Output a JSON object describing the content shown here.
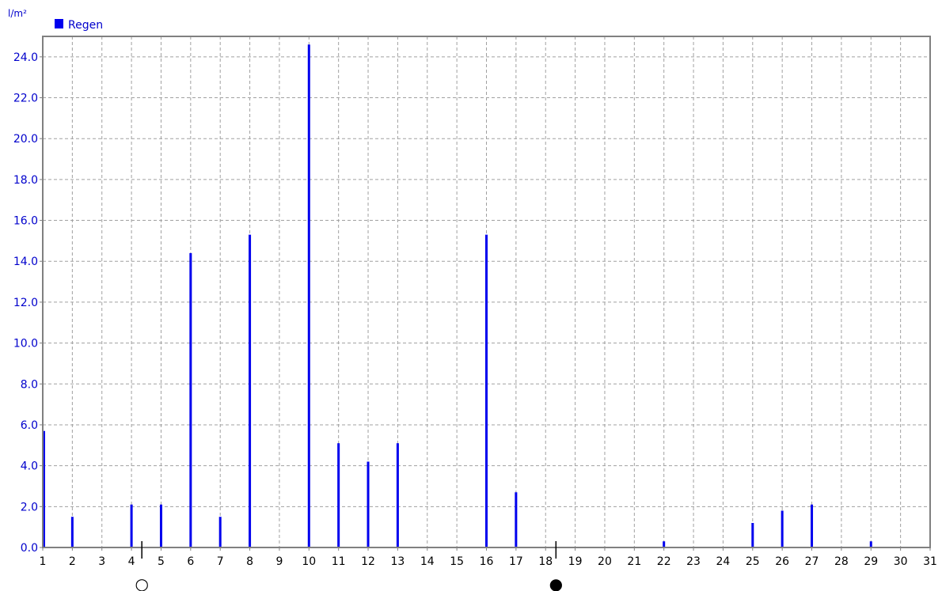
{
  "chart_data": {
    "type": "bar",
    "ylabel": "l/m²",
    "ylim": [
      0,
      25
    ],
    "yticks": [
      0,
      2,
      4,
      6,
      8,
      10,
      12,
      14,
      16,
      18,
      20,
      22,
      24
    ],
    "ytick_labels": [
      "0.0",
      "2.0",
      "4.0",
      "6.0",
      "8.0",
      "10.0",
      "12.0",
      "14.0",
      "16.0",
      "18.0",
      "20.0",
      "22.0",
      "24.0"
    ],
    "xlim": [
      1,
      31
    ],
    "x_tick_labels": [
      "1",
      "2",
      "3",
      "4",
      "5",
      "6",
      "7",
      "8",
      "9",
      "10",
      "11",
      "12",
      "13",
      "14",
      "15",
      "16",
      "17",
      "18",
      "19",
      "20",
      "21",
      "22",
      "23",
      "24",
      "25",
      "26",
      "27",
      "28",
      "29",
      "30",
      "31"
    ],
    "grid": true,
    "legend_position": "top-left",
    "series": [
      {
        "name": "Regen",
        "color": "#0000ee",
        "x": [
          1,
          2,
          4,
          5,
          6,
          7,
          8,
          10,
          11,
          12,
          13,
          16,
          17,
          22,
          25,
          26,
          27,
          29
        ],
        "values": [
          5.7,
          1.5,
          2.1,
          2.1,
          14.4,
          1.5,
          15.3,
          24.6,
          5.1,
          4.2,
          5.1,
          15.3,
          2.7,
          0.3,
          1.2,
          1.8,
          2.1,
          0.3
        ]
      }
    ],
    "moon_phases": [
      {
        "x": 4.35,
        "symbol": "○",
        "phase": "full-moon"
      },
      {
        "x": 18.35,
        "symbol": "●",
        "phase": "new-moon"
      }
    ]
  }
}
